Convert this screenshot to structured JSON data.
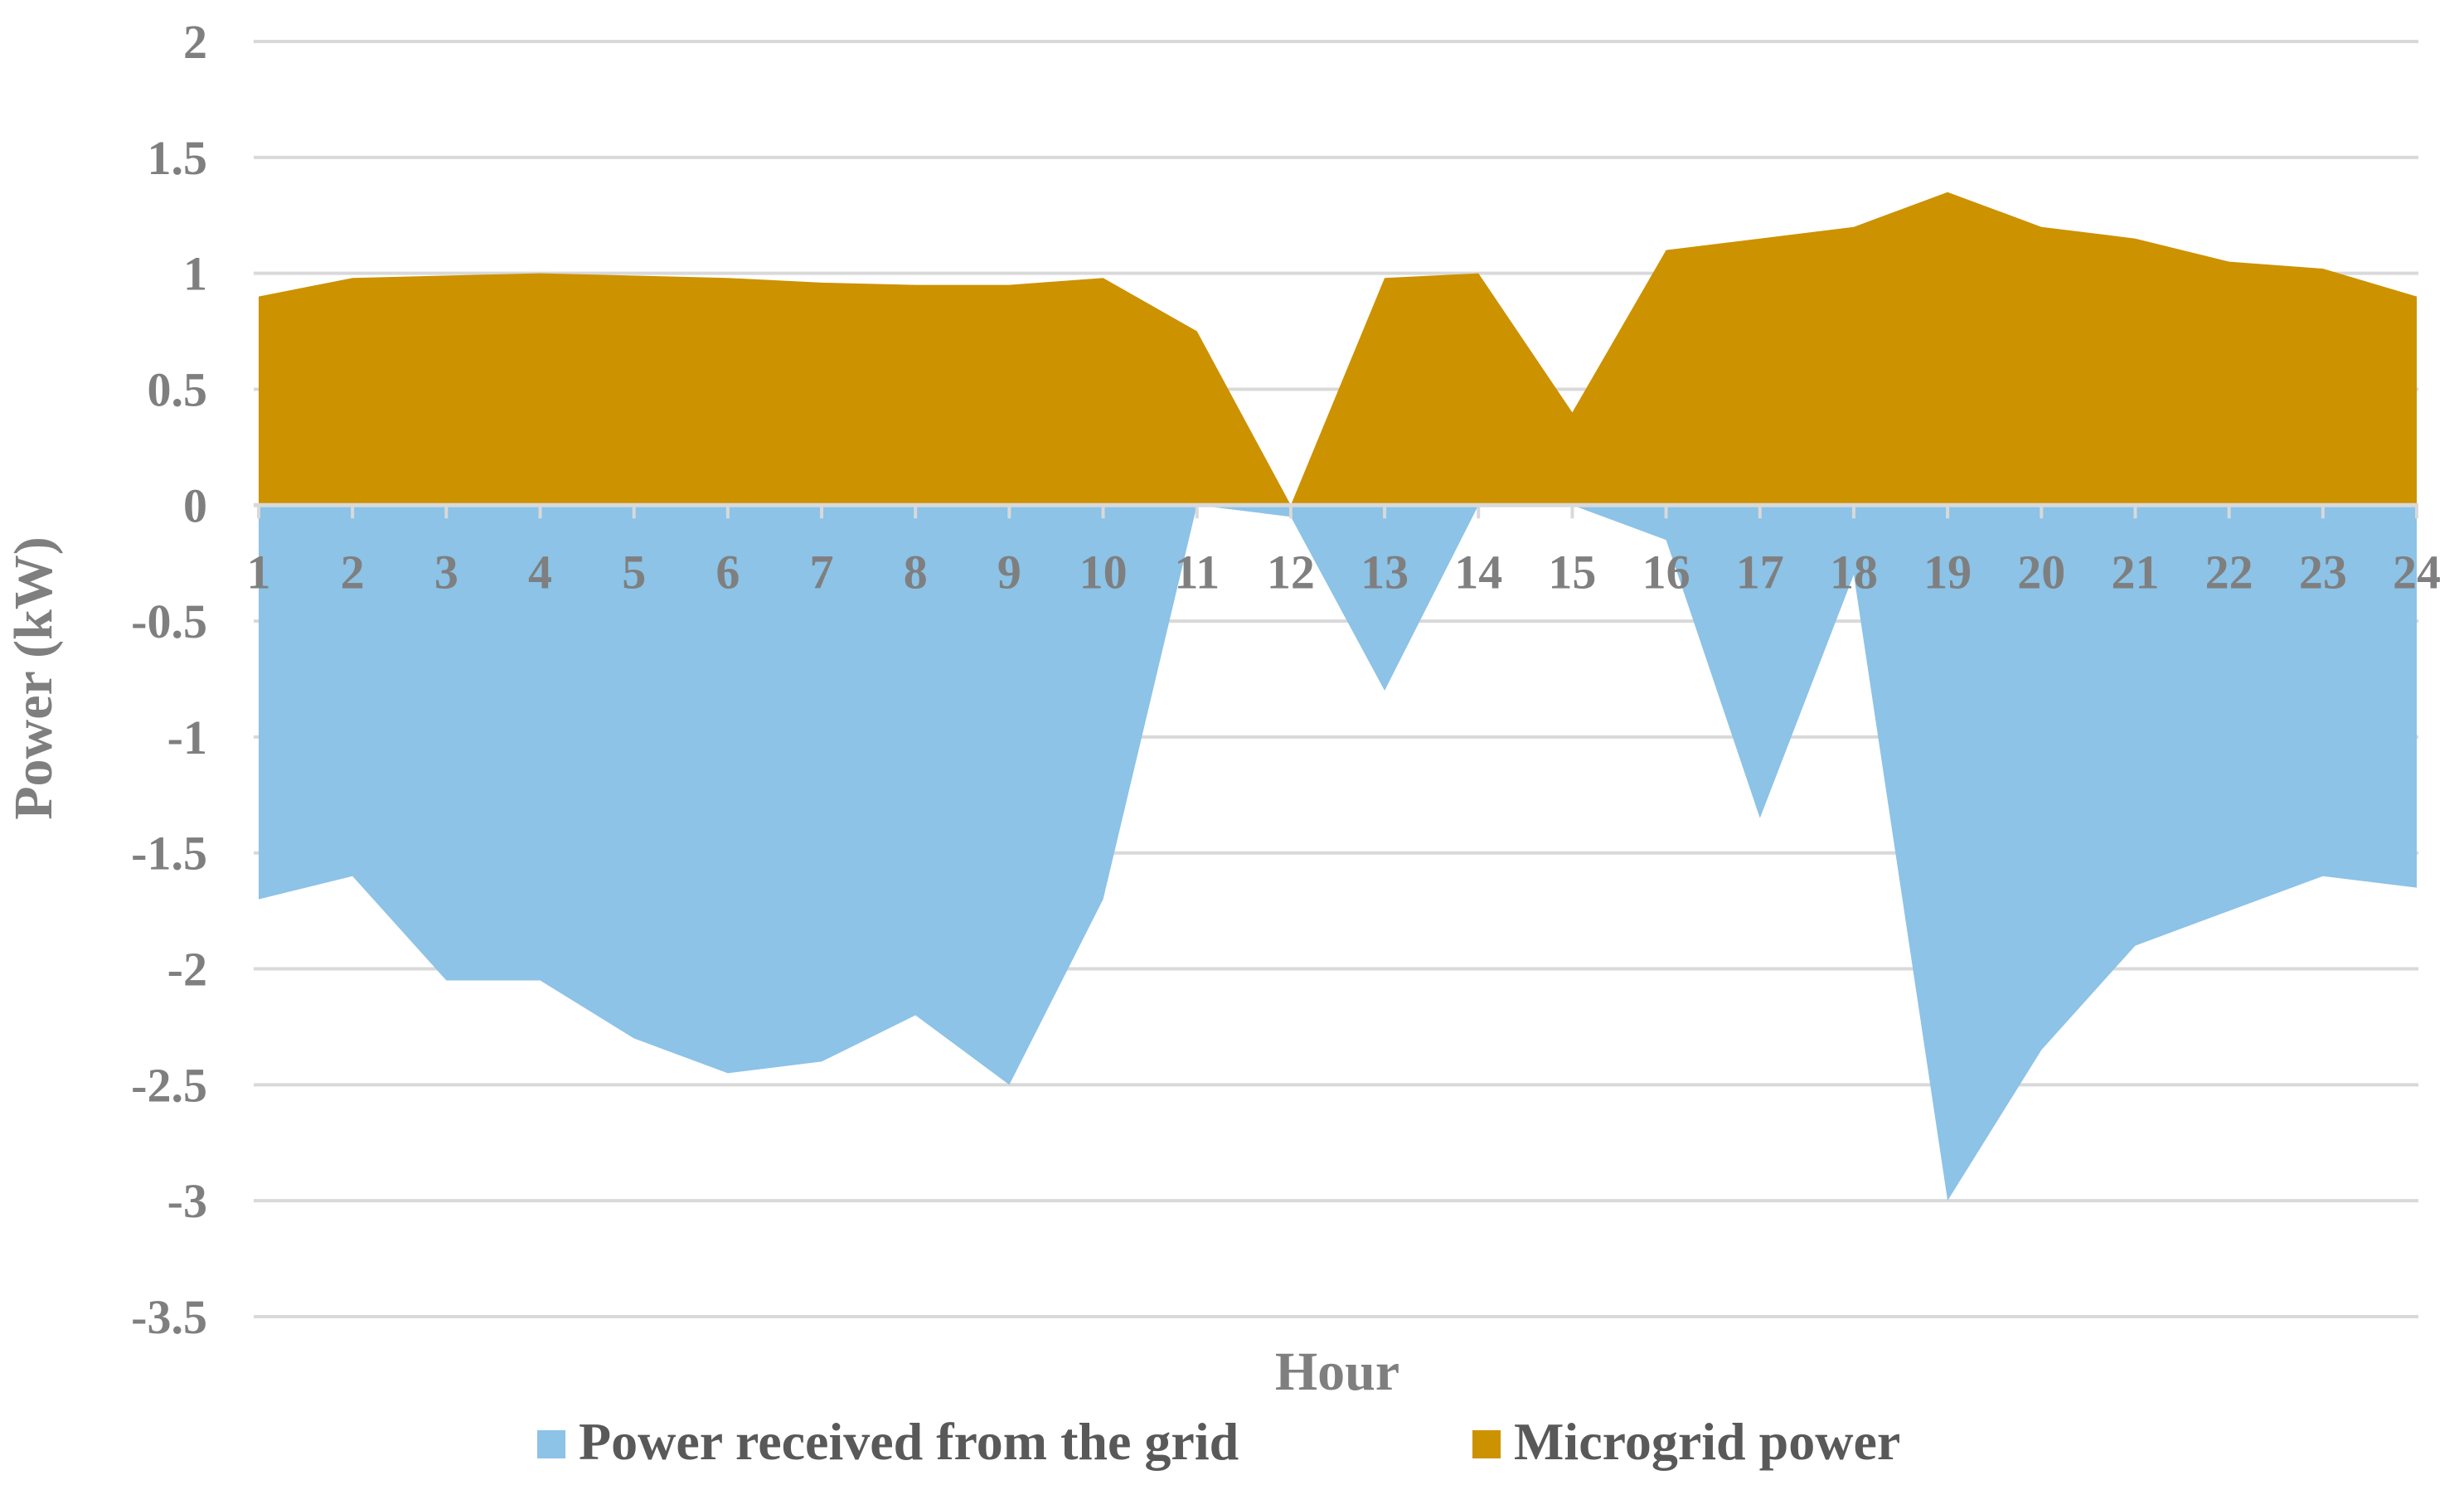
{
  "chart_data": {
    "type": "area",
    "title": "",
    "xlabel": "Hour",
    "ylabel": "Power (kW)",
    "categories": [
      "1",
      "2",
      "3",
      "4",
      "5",
      "6",
      "7",
      "8",
      "9",
      "10",
      "11",
      "12",
      "13",
      "14",
      "15",
      "16",
      "17",
      "18",
      "19",
      "20",
      "21",
      "22",
      "23",
      "24"
    ],
    "y_ticks": [
      "2",
      "1.5",
      "1",
      "0.5",
      "0",
      "-0.5",
      "-1",
      "-1.5",
      "-2",
      "-2.5",
      "-3",
      "-3.5"
    ],
    "ylim": [
      -3.5,
      2
    ],
    "grid": true,
    "legend_position": "bottom",
    "series": [
      {
        "name": "Power received from the grid",
        "color": "#8cc3e7",
        "values": [
          -1.7,
          -1.6,
          -2.05,
          -2.05,
          -2.3,
          -2.45,
          -2.4,
          -2.2,
          -2.5,
          -1.7,
          0.0,
          -0.05,
          -0.8,
          0.0,
          0.0,
          -0.15,
          -1.35,
          -0.3,
          -3.0,
          -2.35,
          -1.9,
          -1.75,
          -1.6,
          -1.65
        ]
      },
      {
        "name": "Microgrid power",
        "color": "#cc9200",
        "values": [
          0.9,
          0.98,
          0.99,
          1.0,
          0.99,
          0.98,
          0.96,
          0.95,
          0.95,
          0.98,
          0.75,
          0.0,
          0.98,
          1.0,
          0.4,
          1.1,
          1.15,
          1.2,
          1.35,
          1.2,
          1.15,
          1.05,
          1.02,
          0.9
        ]
      }
    ]
  }
}
